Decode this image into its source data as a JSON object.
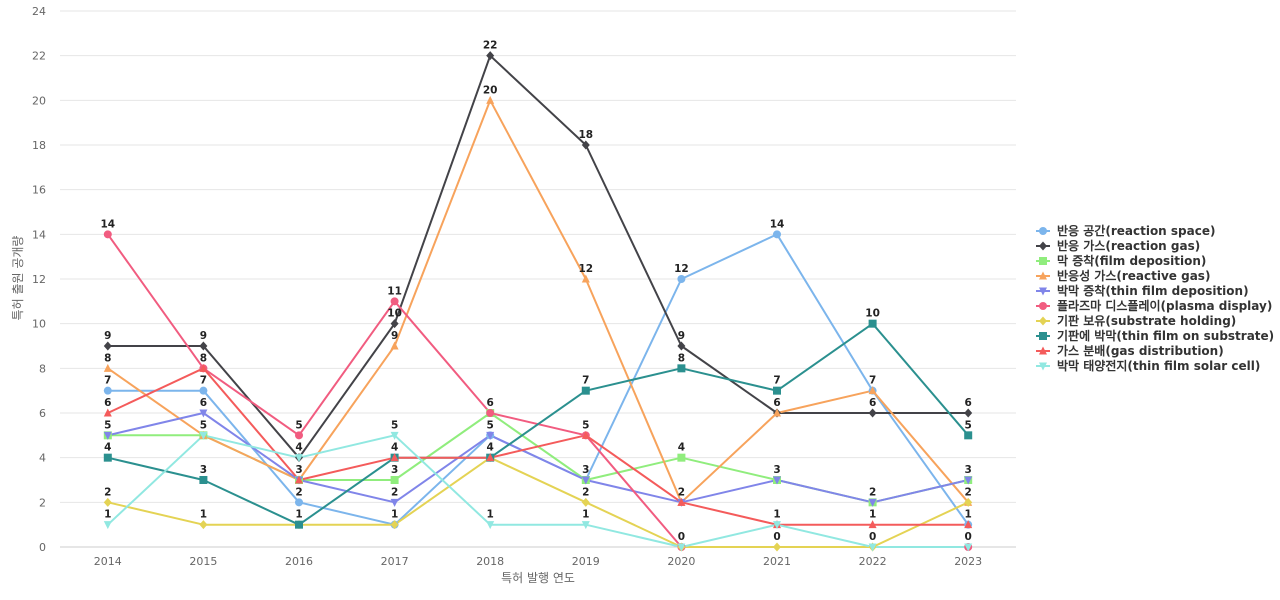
{
  "chart_data": {
    "type": "line",
    "title": "",
    "xlabel": "특허 발행 연도",
    "ylabel": "특허 출원 공개량",
    "x": [
      "2014",
      "2015",
      "2016",
      "2017",
      "2018",
      "2019",
      "2020",
      "2021",
      "2022",
      "2023"
    ],
    "ylim": [
      0,
      24
    ],
    "yticks": [
      0,
      2,
      4,
      6,
      8,
      10,
      12,
      14,
      16,
      18,
      20,
      22,
      24
    ],
    "grid": true,
    "legend_position": "right",
    "series": [
      {
        "name": "반응 공간(reaction space)",
        "color": "#7cb5ec",
        "marker": "circle",
        "values": [
          7,
          7,
          2,
          1,
          5,
          3,
          12,
          14,
          7,
          1
        ]
      },
      {
        "name": "반응 가스(reaction gas)",
        "color": "#434348",
        "marker": "diamond",
        "values": [
          9,
          9,
          4,
          10,
          22,
          18,
          9,
          6,
          6,
          6
        ]
      },
      {
        "name": "막 증착(film deposition)",
        "color": "#90ed7d",
        "marker": "square",
        "values": [
          5,
          5,
          3,
          3,
          6,
          3,
          4,
          3,
          2,
          3
        ]
      },
      {
        "name": "반응성 가스(reactive gas)",
        "color": "#f7a35c",
        "marker": "triangle",
        "values": [
          8,
          5,
          3,
          9,
          20,
          12,
          2,
          6,
          7,
          2
        ]
      },
      {
        "name": "박막 증착(thin film deposition)",
        "color": "#8085e9",
        "marker": "triangle-down",
        "values": [
          5,
          6,
          3,
          2,
          5,
          3,
          2,
          3,
          2,
          3
        ]
      },
      {
        "name": "플라즈마 디스플레이(plasma display)",
        "color": "#f15c80",
        "marker": "circle",
        "values": [
          14,
          8,
          5,
          11,
          6,
          5,
          0,
          null,
          null,
          0
        ]
      },
      {
        "name": "기판 보유(substrate holding)",
        "color": "#e4d354",
        "marker": "diamond",
        "values": [
          2,
          1,
          1,
          1,
          4,
          2,
          0,
          0,
          0,
          2
        ]
      },
      {
        "name": "기판에 박막(thin film on substrate)",
        "color": "#2b908f",
        "marker": "square",
        "values": [
          4,
          3,
          1,
          4,
          4,
          7,
          8,
          7,
          10,
          5
        ]
      },
      {
        "name": "가스 분배(gas distribution)",
        "color": "#f45b5b",
        "marker": "triangle",
        "values": [
          6,
          8,
          3,
          4,
          4,
          5,
          2,
          1,
          1,
          1
        ]
      },
      {
        "name": "박막 태양전지(thin film solar cell)",
        "color": "#91e8e1",
        "marker": "triangle-down",
        "values": [
          1,
          5,
          4,
          5,
          1,
          1,
          0,
          1,
          0,
          0
        ]
      }
    ],
    "data_labels": [
      {
        "x": "2014",
        "series": 5,
        "text": "14"
      },
      {
        "x": "2014",
        "series": 1,
        "text": "9"
      },
      {
        "x": "2014",
        "series": 3,
        "text": "8"
      },
      {
        "x": "2014",
        "series": 0,
        "text": "7"
      },
      {
        "x": "2014",
        "series": 8,
        "text": "6"
      },
      {
        "x": "2014",
        "series": 2,
        "text": "5"
      },
      {
        "x": "2014",
        "series": 7,
        "text": "4"
      },
      {
        "x": "2014",
        "series": 6,
        "text": "2"
      },
      {
        "x": "2014",
        "series": 9,
        "text": "1"
      },
      {
        "x": "2015",
        "series": 1,
        "text": "9"
      },
      {
        "x": "2015",
        "series": 5,
        "text": "8"
      },
      {
        "x": "2015",
        "series": 0,
        "text": "7"
      },
      {
        "x": "2015",
        "series": 4,
        "text": "6"
      },
      {
        "x": "2015",
        "series": 3,
        "text": "5"
      },
      {
        "x": "2015",
        "series": 7,
        "text": "3"
      },
      {
        "x": "2015",
        "series": 6,
        "text": "1"
      },
      {
        "x": "2016",
        "series": 5,
        "text": "5"
      },
      {
        "x": "2016",
        "series": 1,
        "text": "4"
      },
      {
        "x": "2016",
        "series": 3,
        "text": "3"
      },
      {
        "x": "2016",
        "series": 0,
        "text": "2"
      },
      {
        "x": "2016",
        "series": 7,
        "text": "1"
      },
      {
        "x": "2017",
        "series": 5,
        "text": "11"
      },
      {
        "x": "2017",
        "series": 1,
        "text": "10"
      },
      {
        "x": "2017",
        "series": 3,
        "text": "9"
      },
      {
        "x": "2017",
        "series": 9,
        "text": "5"
      },
      {
        "x": "2017",
        "series": 8,
        "text": "4"
      },
      {
        "x": "2017",
        "series": 2,
        "text": "3"
      },
      {
        "x": "2017",
        "series": 4,
        "text": "2"
      },
      {
        "x": "2017",
        "series": 0,
        "text": "1"
      },
      {
        "x": "2018",
        "series": 1,
        "text": "22"
      },
      {
        "x": "2018",
        "series": 3,
        "text": "20"
      },
      {
        "x": "2018",
        "series": 2,
        "text": "6"
      },
      {
        "x": "2018",
        "series": 0,
        "text": "5"
      },
      {
        "x": "2018",
        "series": 7,
        "text": "4"
      },
      {
        "x": "2018",
        "series": 9,
        "text": "1"
      },
      {
        "x": "2019",
        "series": 1,
        "text": "18"
      },
      {
        "x": "2019",
        "series": 3,
        "text": "12"
      },
      {
        "x": "2019",
        "series": 7,
        "text": "7"
      },
      {
        "x": "2019",
        "series": 8,
        "text": "5"
      },
      {
        "x": "2019",
        "series": 0,
        "text": "3"
      },
      {
        "x": "2019",
        "series": 6,
        "text": "2"
      },
      {
        "x": "2019",
        "series": 9,
        "text": "1"
      },
      {
        "x": "2020",
        "series": 0,
        "text": "12"
      },
      {
        "x": "2020",
        "series": 1,
        "text": "9"
      },
      {
        "x": "2020",
        "series": 7,
        "text": "8"
      },
      {
        "x": "2020",
        "series": 2,
        "text": "4"
      },
      {
        "x": "2020",
        "series": 4,
        "text": "2"
      },
      {
        "x": "2020",
        "series": 5,
        "text": "0"
      },
      {
        "x": "2021",
        "series": 0,
        "text": "14"
      },
      {
        "x": "2021",
        "series": 7,
        "text": "7"
      },
      {
        "x": "2021",
        "series": 1,
        "text": "6"
      },
      {
        "x": "2021",
        "series": 2,
        "text": "3"
      },
      {
        "x": "2021",
        "series": 8,
        "text": "1"
      },
      {
        "x": "2021",
        "series": 6,
        "text": "0"
      },
      {
        "x": "2022",
        "series": 7,
        "text": "10"
      },
      {
        "x": "2022",
        "series": 3,
        "text": "7"
      },
      {
        "x": "2022",
        "series": 1,
        "text": "6"
      },
      {
        "x": "2022",
        "series": 4,
        "text": "2"
      },
      {
        "x": "2022",
        "series": 8,
        "text": "1"
      },
      {
        "x": "2022",
        "series": 6,
        "text": "0"
      },
      {
        "x": "2023",
        "series": 1,
        "text": "6"
      },
      {
        "x": "2023",
        "series": 7,
        "text": "5"
      },
      {
        "x": "2023",
        "series": 4,
        "text": "3"
      },
      {
        "x": "2023",
        "series": 3,
        "text": "2"
      },
      {
        "x": "2023",
        "series": 0,
        "text": "1"
      },
      {
        "x": "2023",
        "series": 5,
        "text": "0"
      }
    ]
  }
}
